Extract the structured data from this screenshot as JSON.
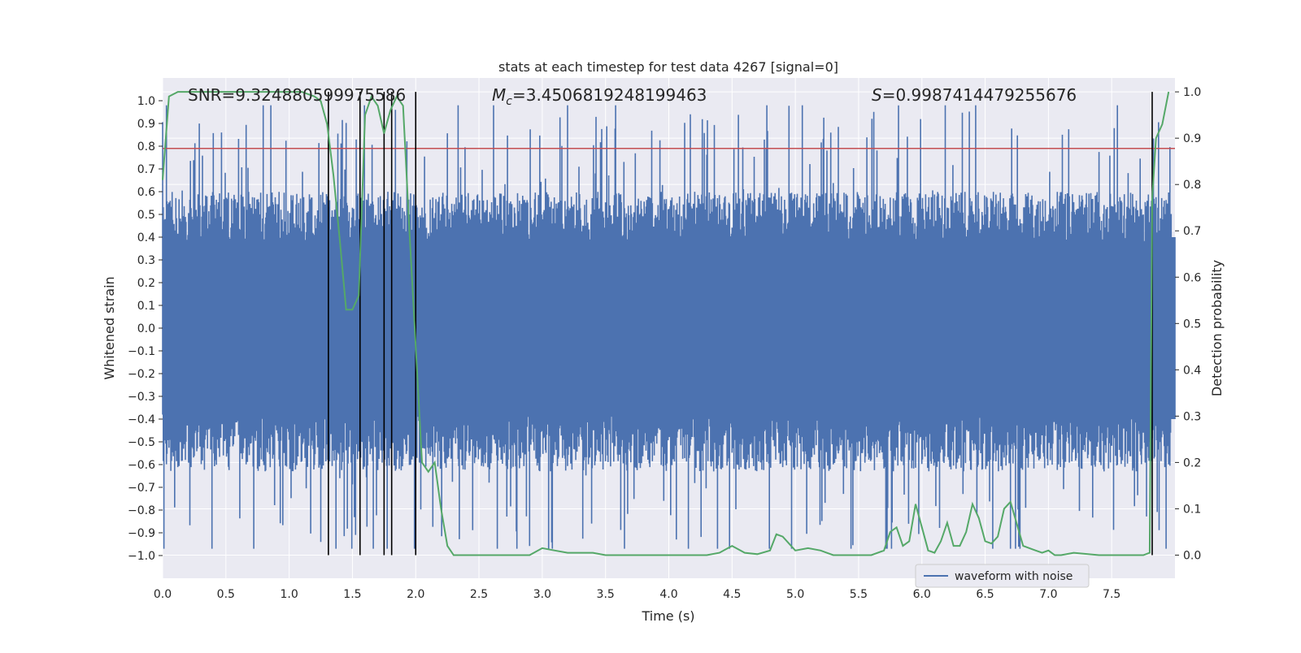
{
  "chart_data": {
    "type": "line",
    "title": "stats at each timestep for test data 4267 [signal=0]",
    "xlabel": "Time (s)",
    "ylabel": "Whitened strain",
    "ylabel_right": "Detection probability",
    "xlim": [
      0.0,
      8.0
    ],
    "ylim": [
      -1.1,
      1.1
    ],
    "ylim_right": [
      -0.05,
      1.03
    ],
    "x_ticks": [
      0.0,
      0.5,
      1.0,
      1.5,
      2.0,
      2.5,
      3.0,
      3.5,
      4.0,
      4.5,
      5.0,
      5.5,
      6.0,
      6.5,
      7.0,
      7.5
    ],
    "x_tick_labels": [
      "0.0",
      "0.5",
      "1.0",
      "1.5",
      "2.0",
      "2.5",
      "3.0",
      "3.5",
      "4.0",
      "4.5",
      "5.0",
      "5.5",
      "6.0",
      "6.5",
      "7.0",
      "7.5"
    ],
    "y_ticks": [
      1.0,
      0.9,
      0.8,
      0.7,
      0.6,
      0.5,
      0.4,
      0.3,
      0.2,
      0.1,
      0.0,
      -0.1,
      -0.2,
      -0.3,
      -0.4,
      -0.5,
      -0.6,
      -0.7,
      -0.8,
      -0.9,
      -1.0
    ],
    "y_tick_labels": [
      "1.0",
      "0.9",
      "0.8",
      "0.7",
      "0.6",
      "0.5",
      "0.4",
      "0.3",
      "0.2",
      "0.1",
      "0.0",
      "−0.1",
      "−0.2",
      "−0.3",
      "−0.4",
      "−0.5",
      "−0.6",
      "−0.7",
      "−0.8",
      "−0.9",
      "−1.0"
    ],
    "y_right_ticks": [
      1.0,
      0.9,
      0.8,
      0.7,
      0.6,
      0.5,
      0.4,
      0.3,
      0.2,
      0.1,
      0.0
    ],
    "y_right_tick_labels": [
      "1.0",
      "0.9",
      "0.8",
      "0.7",
      "0.6",
      "0.5",
      "0.4",
      "0.3",
      "0.2",
      "0.1",
      "0.0"
    ],
    "annotations": {
      "snr": "SNR=9.324880599975586",
      "mc_symbol": "M",
      "mc_sub": "c",
      "mc_value": "=3.4506819248199463",
      "s_symbol": "S",
      "s_value": "=0.9987414479255676"
    },
    "legend": {
      "label": "waveform with noise",
      "location": "lower-right"
    },
    "series": [
      {
        "name": "waveform with noise",
        "kind": "strain",
        "color": "#4c72b0",
        "sample_step_s": 0.005,
        "core_amplitude": 0.38,
        "noise_seed": 4267
      },
      {
        "name": "detection probability",
        "kind": "probability",
        "axis": "right",
        "color": "#55a868",
        "x": [
          0.0,
          0.05,
          0.12,
          0.2,
          0.4,
          0.6,
          0.8,
          1.0,
          1.1,
          1.2,
          1.25,
          1.3,
          1.35,
          1.4,
          1.45,
          1.5,
          1.55,
          1.6,
          1.65,
          1.7,
          1.75,
          1.8,
          1.85,
          1.9,
          1.95,
          2.0,
          2.05,
          2.1,
          2.15,
          2.2,
          2.25,
          2.3,
          2.4,
          2.5,
          2.6,
          2.7,
          2.8,
          2.9,
          3.0,
          3.1,
          3.2,
          3.3,
          3.4,
          3.5,
          3.7,
          4.0,
          4.3,
          4.4,
          4.5,
          4.6,
          4.7,
          4.8,
          4.85,
          4.9,
          5.0,
          5.1,
          5.2,
          5.3,
          5.4,
          5.5,
          5.6,
          5.7,
          5.75,
          5.8,
          5.85,
          5.9,
          5.95,
          6.0,
          6.05,
          6.1,
          6.15,
          6.2,
          6.25,
          6.3,
          6.35,
          6.4,
          6.45,
          6.5,
          6.55,
          6.6,
          6.65,
          6.7,
          6.8,
          6.9,
          6.95,
          7.0,
          7.05,
          7.1,
          7.2,
          7.4,
          7.6,
          7.75,
          7.8,
          7.82,
          7.85,
          7.9,
          7.95
        ],
        "y": [
          0.81,
          0.99,
          1.0,
          1.0,
          1.0,
          1.0,
          1.0,
          1.0,
          1.0,
          0.99,
          0.98,
          0.93,
          0.82,
          0.68,
          0.53,
          0.53,
          0.56,
          0.95,
          0.99,
          0.97,
          0.91,
          0.96,
          0.99,
          0.97,
          0.7,
          0.45,
          0.2,
          0.18,
          0.2,
          0.1,
          0.02,
          0.0,
          0.0,
          0.0,
          0.0,
          0.0,
          0.0,
          0.0,
          0.015,
          0.01,
          0.005,
          0.005,
          0.005,
          0.0,
          0.0,
          0.0,
          0.0,
          0.005,
          0.02,
          0.005,
          0.002,
          0.01,
          0.045,
          0.04,
          0.01,
          0.015,
          0.01,
          0.0,
          0.0,
          0.0,
          0.0,
          0.01,
          0.05,
          0.06,
          0.02,
          0.03,
          0.11,
          0.06,
          0.01,
          0.005,
          0.03,
          0.07,
          0.02,
          0.02,
          0.05,
          0.11,
          0.08,
          0.03,
          0.025,
          0.04,
          0.1,
          0.115,
          0.02,
          0.01,
          0.005,
          0.01,
          0.0,
          0.0,
          0.005,
          0.0,
          0.0,
          0.0,
          0.005,
          0.77,
          0.9,
          0.93,
          1.0
        ]
      },
      {
        "name": "threshold",
        "kind": "hline",
        "color": "#c44e52",
        "y": 0.79
      }
    ],
    "vertical_markers_x": [
      1.31,
      1.56,
      1.75,
      1.81,
      2.0,
      7.82
    ]
  }
}
